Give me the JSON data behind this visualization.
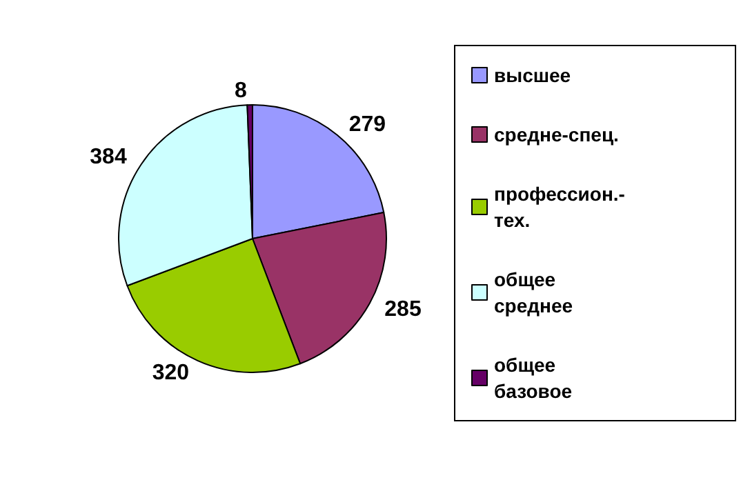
{
  "chart_data": {
    "type": "pie",
    "categories": [
      "высшее",
      "средне-спец.",
      "профессион.-тех.",
      "общее среднее",
      "общее базовое"
    ],
    "values": [
      279,
      285,
      320,
      384,
      8
    ],
    "colors": [
      "#9999ff",
      "#993366",
      "#99cc00",
      "#ccffff",
      "#660066"
    ],
    "data_labels": true,
    "legend": "right"
  }
}
